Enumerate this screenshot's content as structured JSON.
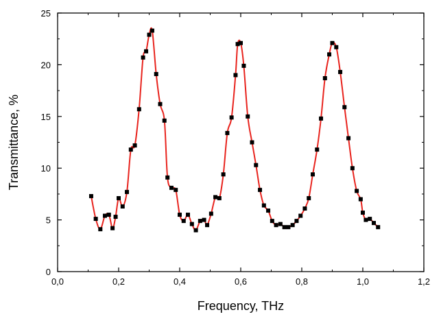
{
  "chart_data": {
    "type": "line",
    "xlabel": "Frequency, THz",
    "ylabel": "Transmittance, %",
    "xlim": [
      0,
      1.2
    ],
    "ylim": [
      0,
      25
    ],
    "xticks": [
      "0,0",
      "0,2",
      "0,4",
      "0,6",
      "0,8",
      "1,0",
      "1,2"
    ],
    "yticks": [
      "0",
      "5",
      "10",
      "15",
      "20",
      "25"
    ],
    "grid": false,
    "legend": "none",
    "line_color": "#e8231d",
    "marker_color": "#000000",
    "marker": "square",
    "series": [
      {
        "x": [
          0.11,
          0.125,
          0.14,
          0.155,
          0.168,
          0.18,
          0.19,
          0.2,
          0.213,
          0.227,
          0.24,
          0.253,
          0.267,
          0.28,
          0.29,
          0.3,
          0.31,
          0.323,
          0.336,
          0.35,
          0.36,
          0.373,
          0.387,
          0.4,
          0.413,
          0.427,
          0.44,
          0.453,
          0.467,
          0.48,
          0.49,
          0.503,
          0.517,
          0.53,
          0.543,
          0.556,
          0.57,
          0.583,
          0.59,
          0.6,
          0.61,
          0.623,
          0.637,
          0.65,
          0.663,
          0.676,
          0.69,
          0.703,
          0.716,
          0.73,
          0.743,
          0.756,
          0.77,
          0.783,
          0.796,
          0.81,
          0.823,
          0.836,
          0.85,
          0.863,
          0.876,
          0.89,
          0.9,
          0.913,
          0.926,
          0.94,
          0.953,
          0.966,
          0.98,
          0.993,
          1.0,
          1.01,
          1.023,
          1.036,
          1.05
        ],
        "y": [
          7.3,
          5.1,
          4.1,
          5.4,
          5.5,
          4.2,
          5.3,
          7.1,
          6.3,
          7.7,
          11.8,
          12.2,
          15.7,
          20.7,
          21.3,
          22.9,
          23.3,
          19.1,
          16.2,
          14.6,
          9.1,
          8.1,
          7.9,
          5.5,
          4.9,
          5.5,
          4.6,
          4.0,
          4.9,
          5.0,
          4.5,
          5.6,
          7.2,
          7.1,
          9.4,
          13.4,
          14.9,
          19.0,
          22.0,
          22.1,
          19.9,
          15.0,
          12.5,
          10.3,
          7.9,
          6.4,
          5.9,
          4.9,
          4.5,
          4.6,
          4.3,
          4.3,
          4.5,
          4.9,
          5.4,
          6.1,
          7.1,
          9.4,
          11.8,
          14.8,
          18.7,
          21.0,
          22.1,
          21.7,
          19.3,
          15.9,
          12.9,
          10.0,
          7.8,
          7.0,
          5.7,
          5.0,
          5.1,
          4.7,
          4.3
        ]
      }
    ]
  }
}
